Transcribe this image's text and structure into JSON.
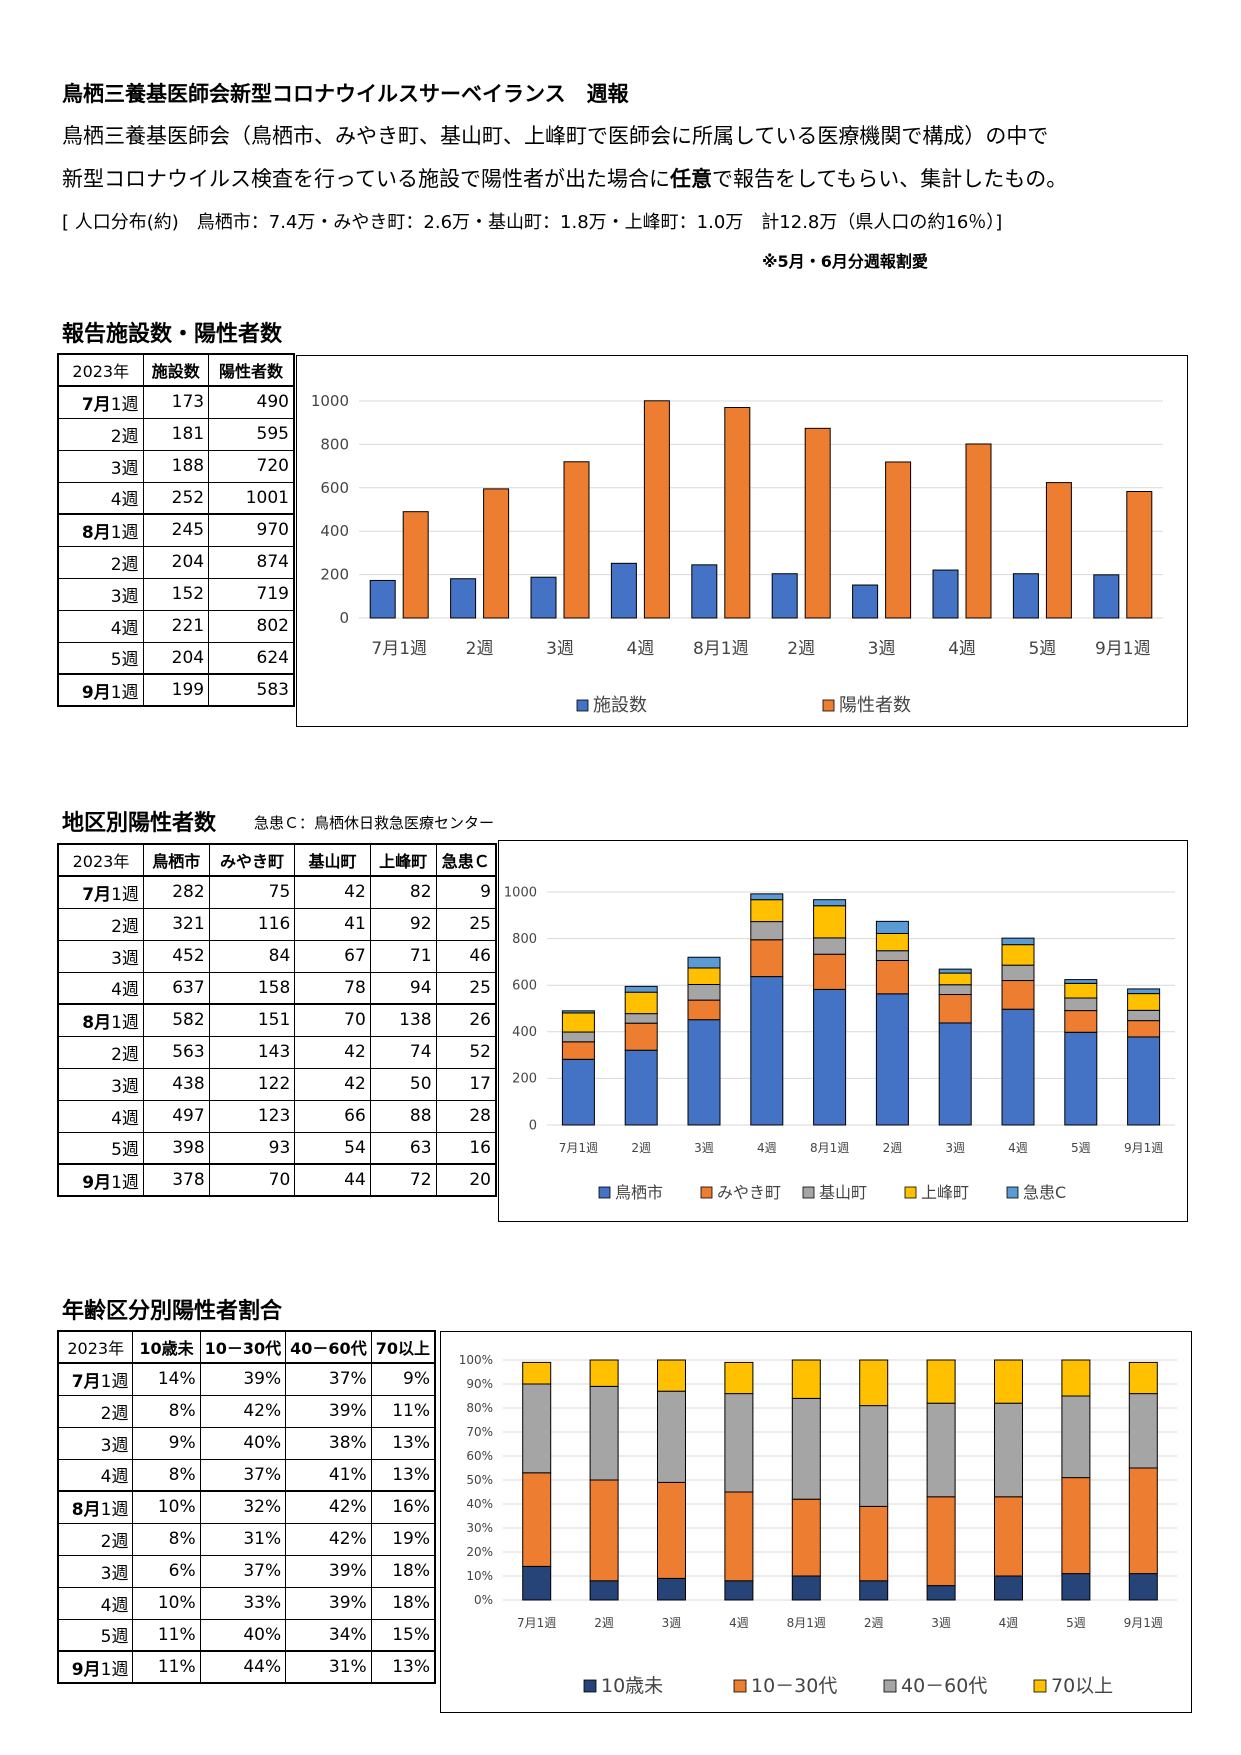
{
  "header": {
    "title": "鳥栖三養基医師会新型コロナウイルスサーベイランス　週報",
    "intro_line1": "鳥栖三養基医師会（鳥栖市、みやき町、基山町、上峰町で医師会に所属している医療機関で構成）の中で",
    "intro_line2_pre": "新型コロナウイルス検査を行っている施設で陽性者が出た場合に",
    "intro_line2_bold": "任意",
    "intro_line2_post": "で報告をしてもらい、集計したもの。",
    "population": "[ 人口分布(約)　鳥栖市：7.4万・みやき町：2.6万・基山町：1.8万・上峰町：1.0万　計12.8万（県人口の約16％）]",
    "note": "※5月・6月分週報割愛"
  },
  "weeks": [
    {
      "month": "7月",
      "week": "1週"
    },
    {
      "month": "",
      "week": "2週"
    },
    {
      "month": "",
      "week": "3週"
    },
    {
      "month": "",
      "week": "4週"
    },
    {
      "month": "8月",
      "week": "1週"
    },
    {
      "month": "",
      "week": "2週"
    },
    {
      "month": "",
      "week": "3週"
    },
    {
      "month": "",
      "week": "4週"
    },
    {
      "month": "",
      "week": "5週"
    },
    {
      "month": "9月",
      "week": "1週"
    }
  ],
  "section1": {
    "title": "報告施設数・陽性者数",
    "headers": [
      "2023年",
      "施設数",
      "陽性者数"
    ],
    "rows": [
      [
        173,
        490
      ],
      [
        181,
        595
      ],
      [
        188,
        720
      ],
      [
        252,
        1001
      ],
      [
        245,
        970
      ],
      [
        204,
        874
      ],
      [
        152,
        719
      ],
      [
        221,
        802
      ],
      [
        204,
        624
      ],
      [
        199,
        583
      ]
    ]
  },
  "section2": {
    "title": "地区別陽性者数",
    "subtitle": "急患Ｃ：鳥栖休日救急医療センター",
    "headers": [
      "2023年",
      "鳥栖市",
      "みやき町",
      "基山町",
      "上峰町",
      "急患Ｃ"
    ],
    "rows": [
      [
        282,
        75,
        42,
        82,
        9
      ],
      [
        321,
        116,
        41,
        92,
        25
      ],
      [
        452,
        84,
        67,
        71,
        46
      ],
      [
        637,
        158,
        78,
        94,
        25
      ],
      [
        582,
        151,
        70,
        138,
        26
      ],
      [
        563,
        143,
        42,
        74,
        52
      ],
      [
        438,
        122,
        42,
        50,
        17
      ],
      [
        497,
        123,
        66,
        88,
        28
      ],
      [
        398,
        93,
        54,
        63,
        16
      ],
      [
        378,
        70,
        44,
        72,
        20
      ]
    ]
  },
  "section3": {
    "title": "年齢区分別陽性者割合",
    "headers": [
      "2023年",
      "10歳未",
      "10－30代",
      "40－60代",
      "70以上"
    ],
    "rows": [
      [
        "14%",
        "39%",
        "37%",
        "9%"
      ],
      [
        "8%",
        "42%",
        "39%",
        "11%"
      ],
      [
        "9%",
        "40%",
        "38%",
        "13%"
      ],
      [
        "8%",
        "37%",
        "41%",
        "13%"
      ],
      [
        "10%",
        "32%",
        "42%",
        "16%"
      ],
      [
        "8%",
        "31%",
        "42%",
        "19%"
      ],
      [
        "6%",
        "37%",
        "39%",
        "18%"
      ],
      [
        "10%",
        "33%",
        "39%",
        "18%"
      ],
      [
        "11%",
        "40%",
        "34%",
        "15%"
      ],
      [
        "11%",
        "44%",
        "31%",
        "13%"
      ]
    ]
  },
  "chart_data": [
    {
      "type": "bar",
      "categories": [
        "7月1週",
        "2週",
        "3週",
        "4週",
        "8月1週",
        "2週",
        "3週",
        "4週",
        "5週",
        "9月1週"
      ],
      "series": [
        {
          "name": "施設数",
          "values": [
            173,
            181,
            188,
            252,
            245,
            204,
            152,
            221,
            204,
            199
          ]
        },
        {
          "name": "陽性者数",
          "values": [
            490,
            595,
            720,
            1001,
            970,
            874,
            719,
            802,
            624,
            583
          ]
        }
      ],
      "yticks": [
        "0",
        "200",
        "400",
        "600",
        "800",
        "1000"
      ],
      "ylim": [
        0,
        1000
      ],
      "grid": true,
      "legend": "bottom",
      "colors": [
        "#4472C4",
        "#ED7D31"
      ]
    },
    {
      "type": "bar",
      "stacked": true,
      "categories": [
        "7月1週",
        "2週",
        "3週",
        "4週",
        "8月1週",
        "2週",
        "3週",
        "4週",
        "5週",
        "9月1週"
      ],
      "series": [
        {
          "name": "鳥栖市",
          "values": [
            282,
            321,
            452,
            637,
            582,
            563,
            438,
            497,
            398,
            378
          ]
        },
        {
          "name": "みやき町",
          "values": [
            75,
            116,
            84,
            158,
            151,
            143,
            122,
            123,
            93,
            70
          ]
        },
        {
          "name": "基山町",
          "values": [
            42,
            41,
            67,
            78,
            70,
            42,
            42,
            66,
            54,
            44
          ]
        },
        {
          "name": "上峰町",
          "values": [
            82,
            92,
            71,
            94,
            138,
            74,
            50,
            88,
            63,
            72
          ]
        },
        {
          "name": "急患C",
          "values": [
            9,
            25,
            46,
            25,
            26,
            52,
            17,
            28,
            16,
            20
          ]
        }
      ],
      "yticks": [
        "0",
        "200",
        "400",
        "600",
        "800",
        "1000"
      ],
      "ylim": [
        0,
        1000
      ],
      "grid": true,
      "legend": "bottom",
      "colors": [
        "#4472C4",
        "#ED7D31",
        "#A5A5A5",
        "#FFC000",
        "#5B9BD5"
      ]
    },
    {
      "type": "bar",
      "stacked": true,
      "percent": true,
      "categories": [
        "7月1週",
        "2週",
        "3週",
        "4週",
        "8月1週",
        "2週",
        "3週",
        "4週",
        "5週",
        "9月1週"
      ],
      "series": [
        {
          "name": "10歳未",
          "values": [
            14,
            8,
            9,
            8,
            10,
            8,
            6,
            10,
            11,
            11
          ]
        },
        {
          "name": "10－30代",
          "values": [
            39,
            42,
            40,
            37,
            32,
            31,
            37,
            33,
            40,
            44
          ]
        },
        {
          "name": "40－60代",
          "values": [
            37,
            39,
            38,
            41,
            42,
            42,
            39,
            39,
            34,
            31
          ]
        },
        {
          "name": "70以上",
          "values": [
            9,
            11,
            13,
            13,
            16,
            19,
            18,
            18,
            15,
            13
          ]
        }
      ],
      "yticks": [
        "0%",
        "10%",
        "20%",
        "30%",
        "40%",
        "50%",
        "60%",
        "70%",
        "80%",
        "90%",
        "100%"
      ],
      "ylim": [
        0,
        100
      ],
      "grid": true,
      "legend": "bottom",
      "colors": [
        "#264478",
        "#ED7D31",
        "#A5A5A5",
        "#FFC000"
      ]
    }
  ]
}
